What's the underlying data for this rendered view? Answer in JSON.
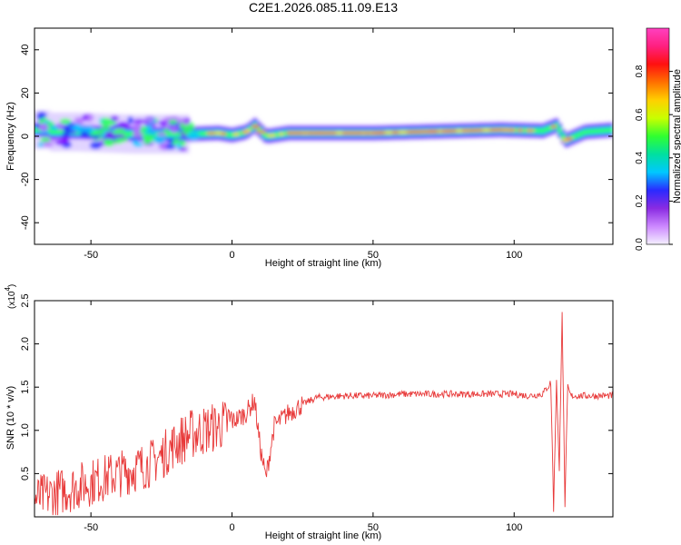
{
  "figure_title": "C2E1.2026.085.11.09.E13",
  "chart_data": [
    {
      "type": "heatmap",
      "xlabel": "Height of straight line (km)",
      "ylabel": "Frequency (Hz)",
      "xlim": [
        -70,
        135
      ],
      "ylim": [
        -50,
        50
      ],
      "xticks": [
        "-50",
        "0",
        "50",
        "100"
      ],
      "yticks": [
        "40",
        "20",
        "0",
        "-20",
        "-40"
      ],
      "colorbar": {
        "label": "Normalized spectral amplitude",
        "range": [
          0,
          1
        ],
        "ticks": [
          "0.0",
          "0.2",
          "0.4",
          "0.6",
          "0.8"
        ],
        "colors": [
          "#f4f0ff",
          "#cc88ff",
          "#8a2be2",
          "#2a2aff",
          "#00c8ff",
          "#00e0a0",
          "#30ff30",
          "#c8ff00",
          "#ffd000",
          "#ff7000",
          "#ff1010",
          "#ff2080",
          "#ff40c0"
        ]
      },
      "ridge_km": [
        -65,
        -55,
        -45,
        -35,
        -25,
        -15,
        -5,
        0,
        5,
        8,
        12,
        20,
        35,
        50,
        65,
        80,
        95,
        110,
        115,
        118,
        125,
        135
      ],
      "ridge_hz": [
        2,
        2,
        1.5,
        1,
        1,
        1,
        1.5,
        0.5,
        2,
        5,
        0,
        1.5,
        1.5,
        1.5,
        2,
        2.5,
        3,
        2.5,
        5,
        -2,
        2,
        3
      ]
    },
    {
      "type": "line",
      "xlabel": "Height of straight line (km)",
      "ylabel": "SNR (10 * v/v)",
      "multiplier_base": "(x10",
      "multiplier_exp": "4",
      "xlim": [
        -70,
        135
      ],
      "ylim": [
        0,
        2.5
      ],
      "xticks": [
        "-50",
        "0",
        "50",
        "100"
      ],
      "yticks": [
        "0.5",
        "1.0",
        "1.5",
        "2.0",
        "2.5"
      ],
      "line_color": "#e83a3a",
      "series": [
        {
          "x": [
            -70,
            -65,
            -60,
            -55,
            -50,
            -45,
            -40,
            -35,
            -30,
            -25,
            -20,
            -15,
            -10,
            -5,
            0,
            5,
            8,
            10,
            12,
            15,
            20,
            25,
            30,
            40,
            50,
            60,
            70,
            80,
            90,
            100,
            105,
            110,
            113,
            114,
            115,
            116,
            117,
            118,
            119,
            120,
            125,
            130,
            135
          ],
          "y": [
            0.2,
            0.25,
            0.3,
            0.35,
            0.4,
            0.45,
            0.5,
            0.55,
            0.6,
            0.7,
            0.85,
            0.95,
            1.0,
            1.05,
            1.1,
            1.2,
            1.35,
            0.8,
            0.45,
            1.05,
            1.2,
            1.3,
            1.38,
            1.4,
            1.4,
            1.42,
            1.42,
            1.42,
            1.42,
            1.42,
            1.4,
            1.42,
            1.55,
            0.1,
            1.6,
            0.5,
            2.4,
            0.15,
            1.5,
            1.4,
            1.4,
            1.4,
            1.4
          ]
        }
      ]
    }
  ]
}
